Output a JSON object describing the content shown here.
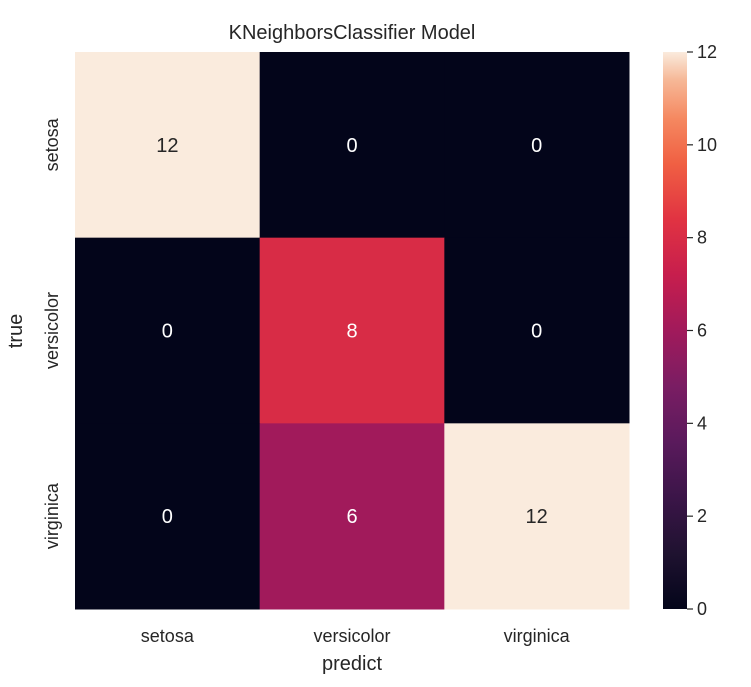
{
  "chart_data": {
    "type": "heatmap",
    "title": "KNeighborsClassifier Model",
    "xlabel": "predict",
    "ylabel": "true",
    "x_categories": [
      "setosa",
      "versicolor",
      "virginica"
    ],
    "y_categories": [
      "setosa",
      "versicolor",
      "virginica"
    ],
    "values": [
      [
        12,
        0,
        0
      ],
      [
        0,
        8,
        0
      ],
      [
        0,
        6,
        12
      ]
    ],
    "colorbar": {
      "min": 0,
      "max": 12,
      "ticks": [
        0,
        2,
        4,
        6,
        8,
        10,
        12
      ],
      "colormap": "rocket"
    },
    "annotations": true,
    "grid": false
  }
}
